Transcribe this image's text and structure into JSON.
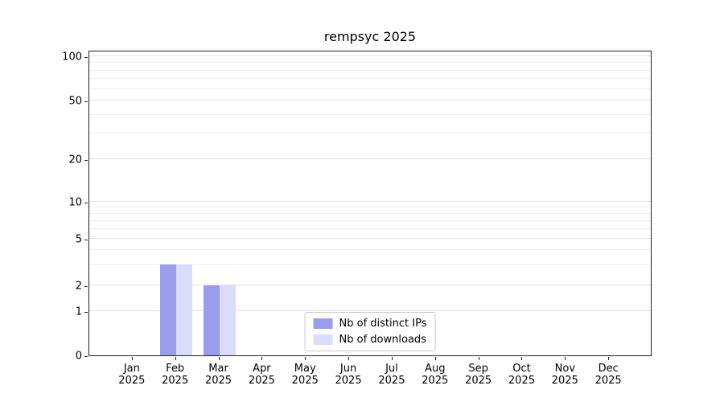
{
  "chart": {
    "title": "rempsyc 2025",
    "colors": {
      "distinct_ips": "#9a9cee",
      "downloads": "#dbdcfa",
      "grid_major": "#e0e0e0",
      "grid_minor": "#ededed",
      "axis": "#222222"
    },
    "legend": [
      {
        "label": "Nb of distinct IPs"
      },
      {
        "label": "Nb of downloads"
      }
    ]
  },
  "chart_data": {
    "type": "bar",
    "title": "rempsyc 2025",
    "categories": [
      "Jan 2025",
      "Feb 2025",
      "Mar 2025",
      "Apr 2025",
      "May 2025",
      "Jun 2025",
      "Jul 2025",
      "Aug 2025",
      "Sep 2025",
      "Oct 2025",
      "Nov 2025",
      "Dec 2025"
    ],
    "series": [
      {
        "name": "Nb of distinct IPs",
        "values": [
          0,
          3,
          2,
          0,
          0,
          0,
          0,
          0,
          0,
          0,
          0,
          0
        ],
        "color": "#9a9cee"
      },
      {
        "name": "Nb of downloads",
        "values": [
          0,
          3,
          2,
          0,
          0,
          0,
          0,
          0,
          0,
          0,
          0,
          0
        ],
        "color": "#dbdcfa"
      }
    ],
    "xlabel": "",
    "ylabel": "",
    "yscale": "symlog",
    "yticks": [
      0,
      1,
      2,
      5,
      10,
      20,
      50,
      100
    ],
    "ylim": [
      0,
      110
    ],
    "grid": true,
    "legend_position": "lower center"
  }
}
